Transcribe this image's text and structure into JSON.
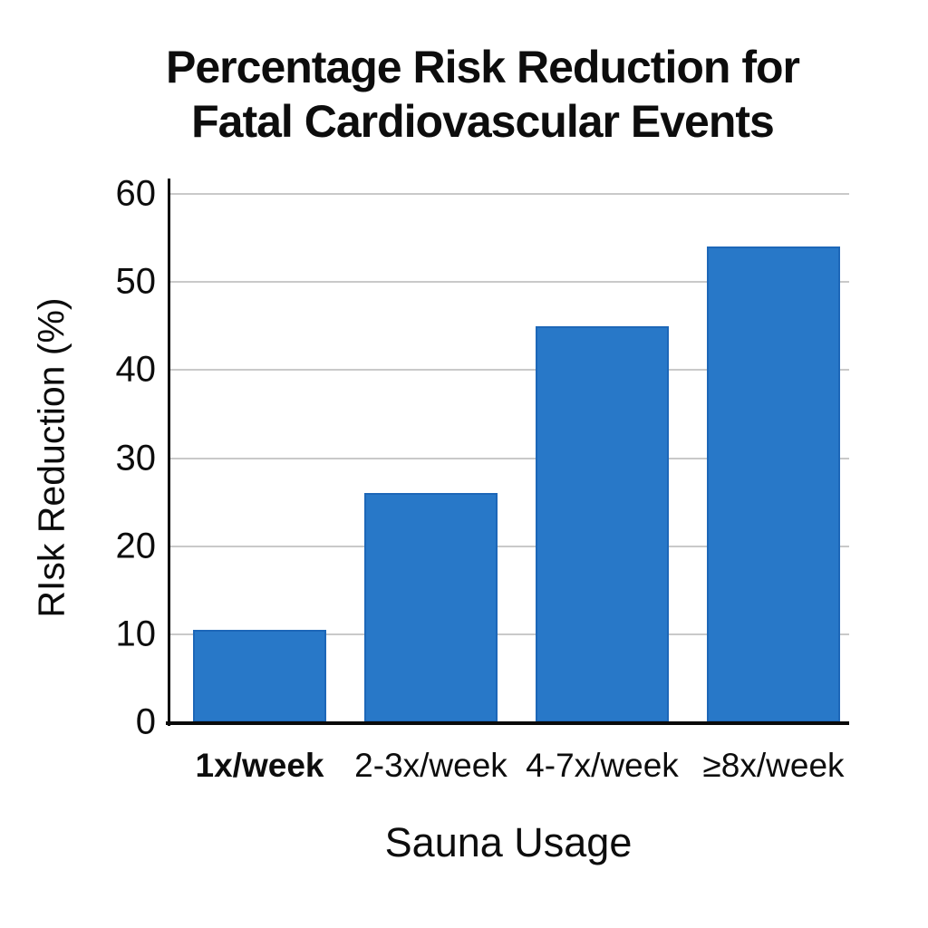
{
  "chart_data": {
    "type": "bar",
    "title": "Percentage Risk Reduction for Fatal Cardiovascular Events",
    "title_lines": [
      "Percentage Risk Reduction for",
      "Fatal Cardiovascular Events"
    ],
    "xlabel": "Sauna Usage",
    "ylabel": "RIsk Reduction (%)",
    "categories": [
      "1x/week",
      "2-3x/week",
      "4-7x/week",
      "≥8x/week"
    ],
    "values": [
      10.5,
      26,
      45,
      54
    ],
    "ylim": [
      0,
      60
    ],
    "yticks": [
      0,
      10,
      20,
      30,
      40,
      50,
      60
    ],
    "grid": "horizontal",
    "legend": "none",
    "emphasized_category_index": 0,
    "colors": {
      "bar_fill": "#2878C8",
      "bar_edge": "#1D67B8",
      "gridline": "#C9C9C9",
      "axis": "#0A0A0A",
      "text": "#0D0D0D",
      "background": "#FFFFFF"
    }
  }
}
